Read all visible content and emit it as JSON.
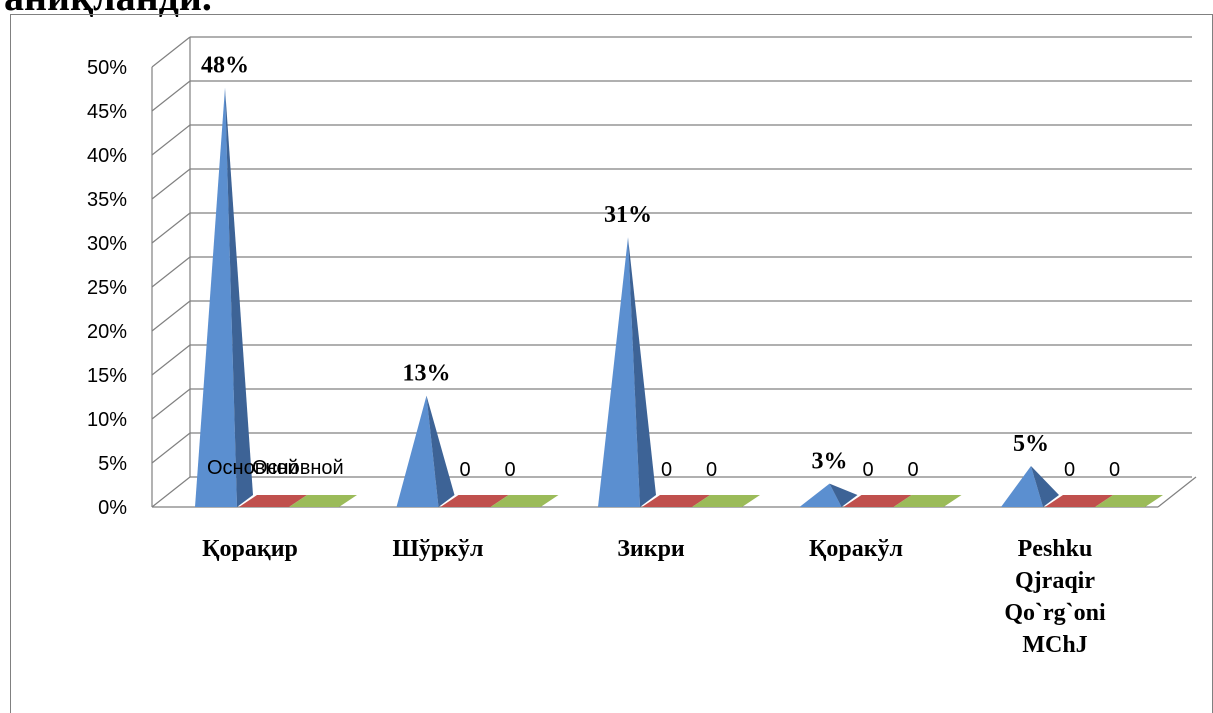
{
  "page": {
    "header_fragment": "аниқланди."
  },
  "chart_data": {
    "type": "bar",
    "categories": [
      "Қорақир",
      "Шўркўл",
      "Зикри",
      "Қоракўл",
      "Peshku Qjraqir Qo`rg`oni MChJ"
    ],
    "series": [
      {
        "values": [
          0.48,
          0.13,
          0.31,
          0.03,
          0.05
        ],
        "labels": [
          "48%",
          "13%",
          "31%",
          "3%",
          "5%"
        ],
        "color": "#4f81bd"
      },
      {
        "values": [
          0,
          0,
          0,
          0,
          0
        ],
        "labels": [
          "Основной",
          "0",
          "0",
          "0",
          "0"
        ],
        "color": "#c0504d"
      },
      {
        "values": [
          0,
          0,
          0,
          0,
          0
        ],
        "labels": [
          "Основной",
          "0",
          "0",
          "0",
          "0"
        ],
        "color": "#9bbb59"
      }
    ],
    "ylim": [
      0,
      0.5
    ],
    "yticks": [
      "0%",
      "5%",
      "10%",
      "15%",
      "20%",
      "25%",
      "30%",
      "35%",
      "40%",
      "45%",
      "50%"
    ],
    "grid": true,
    "style": "3d-pyramid"
  }
}
